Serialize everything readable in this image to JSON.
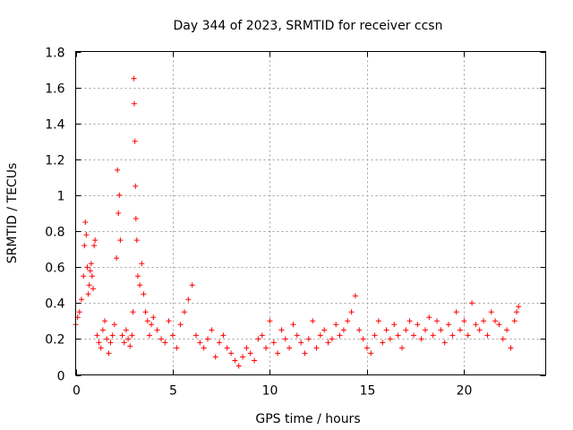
{
  "chart_data": {
    "type": "scatter",
    "title": "Day 344 of 2023, SRMTID for receiver ccsn",
    "xlabel": "GPS time / hours",
    "ylabel": "SRMTID / TECUs",
    "xlim": [
      0,
      24.2
    ],
    "ylim": [
      0,
      1.8
    ],
    "xticks": [
      0,
      5,
      10,
      15,
      20
    ],
    "xtick_labels": [
      "0",
      "5",
      "10",
      "15",
      "20"
    ],
    "yticks": [
      0,
      0.2,
      0.4,
      0.6,
      0.8,
      1,
      1.2,
      1.4,
      1.6,
      1.8
    ],
    "ytick_labels": [
      "0",
      "0.2",
      "0.4",
      "0.6",
      "0.8",
      "1",
      "1.2",
      "1.4",
      "1.6",
      "1.8"
    ],
    "grid": true,
    "marker": "+",
    "color": "#ff0000",
    "series": [
      {
        "name": "SRMTID",
        "x": [
          0.0,
          0.1,
          0.2,
          0.3,
          0.4,
          0.45,
          0.5,
          0.55,
          0.6,
          0.65,
          0.7,
          0.75,
          0.8,
          0.85,
          0.9,
          0.95,
          1.0,
          1.1,
          1.2,
          1.3,
          1.4,
          1.5,
          1.6,
          1.7,
          1.8,
          1.9,
          2.0,
          2.1,
          2.15,
          2.2,
          2.25,
          2.3,
          2.4,
          2.5,
          2.6,
          2.7,
          2.8,
          2.9,
          2.95,
          3.0,
          3.02,
          3.05,
          3.08,
          3.1,
          3.15,
          3.2,
          3.3,
          3.4,
          3.5,
          3.6,
          3.7,
          3.8,
          3.9,
          4.0,
          4.2,
          4.4,
          4.6,
          4.8,
          5.0,
          5.2,
          5.4,
          5.6,
          5.8,
          6.0,
          6.2,
          6.4,
          6.6,
          6.8,
          7.0,
          7.2,
          7.4,
          7.6,
          7.8,
          8.0,
          8.2,
          8.4,
          8.6,
          8.8,
          9.0,
          9.2,
          9.4,
          9.6,
          9.8,
          10.0,
          10.2,
          10.4,
          10.6,
          10.8,
          11.0,
          11.2,
          11.4,
          11.6,
          11.8,
          12.0,
          12.2,
          12.4,
          12.6,
          12.8,
          13.0,
          13.2,
          13.4,
          13.6,
          13.8,
          14.0,
          14.2,
          14.4,
          14.6,
          14.8,
          15.0,
          15.2,
          15.4,
          15.6,
          15.8,
          16.0,
          16.2,
          16.4,
          16.6,
          16.8,
          17.0,
          17.2,
          17.4,
          17.6,
          17.8,
          18.0,
          18.2,
          18.4,
          18.6,
          18.8,
          19.0,
          19.2,
          19.4,
          19.6,
          19.8,
          20.0,
          20.2,
          20.4,
          20.6,
          20.8,
          21.0,
          21.2,
          21.4,
          21.6,
          21.8,
          22.0,
          22.2,
          22.4,
          22.6,
          22.7,
          22.8
        ],
        "y": [
          0.28,
          0.32,
          0.35,
          0.42,
          0.55,
          0.72,
          0.85,
          0.78,
          0.6,
          0.45,
          0.5,
          0.58,
          0.62,
          0.55,
          0.48,
          0.72,
          0.75,
          0.22,
          0.18,
          0.15,
          0.25,
          0.3,
          0.2,
          0.12,
          0.18,
          0.22,
          0.28,
          0.65,
          1.14,
          0.9,
          1.0,
          0.75,
          0.22,
          0.18,
          0.25,
          0.2,
          0.16,
          0.22,
          0.35,
          1.65,
          1.51,
          1.3,
          1.05,
          0.87,
          0.75,
          0.55,
          0.5,
          0.62,
          0.45,
          0.35,
          0.3,
          0.22,
          0.28,
          0.32,
          0.25,
          0.2,
          0.18,
          0.3,
          0.22,
          0.15,
          0.28,
          0.35,
          0.42,
          0.5,
          0.22,
          0.18,
          0.15,
          0.2,
          0.25,
          0.1,
          0.18,
          0.22,
          0.15,
          0.12,
          0.08,
          0.05,
          0.1,
          0.15,
          0.12,
          0.08,
          0.2,
          0.22,
          0.15,
          0.3,
          0.18,
          0.12,
          0.25,
          0.2,
          0.15,
          0.28,
          0.22,
          0.18,
          0.12,
          0.2,
          0.3,
          0.15,
          0.22,
          0.25,
          0.18,
          0.2,
          0.28,
          0.22,
          0.25,
          0.3,
          0.35,
          0.44,
          0.25,
          0.2,
          0.15,
          0.12,
          0.22,
          0.3,
          0.18,
          0.25,
          0.2,
          0.28,
          0.22,
          0.15,
          0.25,
          0.3,
          0.22,
          0.28,
          0.2,
          0.25,
          0.32,
          0.22,
          0.3,
          0.25,
          0.18,
          0.28,
          0.22,
          0.35,
          0.25,
          0.3,
          0.22,
          0.4,
          0.28,
          0.25,
          0.3,
          0.22,
          0.35,
          0.3,
          0.28,
          0.2,
          0.25,
          0.15,
          0.3,
          0.35,
          0.38
        ]
      }
    ]
  }
}
